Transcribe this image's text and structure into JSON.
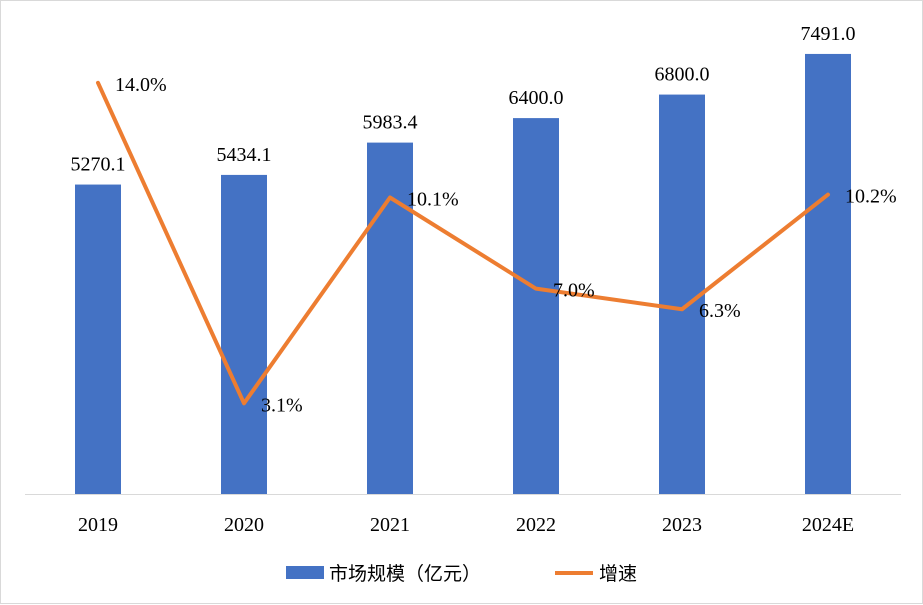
{
  "chart_data": {
    "type": "bar+line",
    "categories": [
      "2019",
      "2020",
      "2021",
      "2022",
      "2023",
      "2024E"
    ],
    "series": [
      {
        "name": "市场规模（亿元）",
        "type": "bar",
        "axis": "left",
        "color": "#4472C4",
        "values": [
          5270.1,
          5434.1,
          5983.4,
          6400.0,
          6800.0,
          7491.0
        ],
        "labels": [
          "5270.1",
          "5434.1",
          "5983.4",
          "6400.0",
          "6800.0",
          "7491.0"
        ]
      },
      {
        "name": "增速",
        "type": "line",
        "axis": "right",
        "color": "#ED7D31",
        "values": [
          14.0,
          3.1,
          10.1,
          7.0,
          6.3,
          10.2
        ],
        "labels": [
          "14.0%",
          "3.1%",
          "10.1%",
          "7.0%",
          "6.3%",
          "10.2%"
        ]
      }
    ],
    "ylim_left": [
      0,
      8000
    ],
    "ylim_right": [
      0,
      16
    ],
    "axes_visible": false,
    "grid": false,
    "legend": "bottom"
  }
}
